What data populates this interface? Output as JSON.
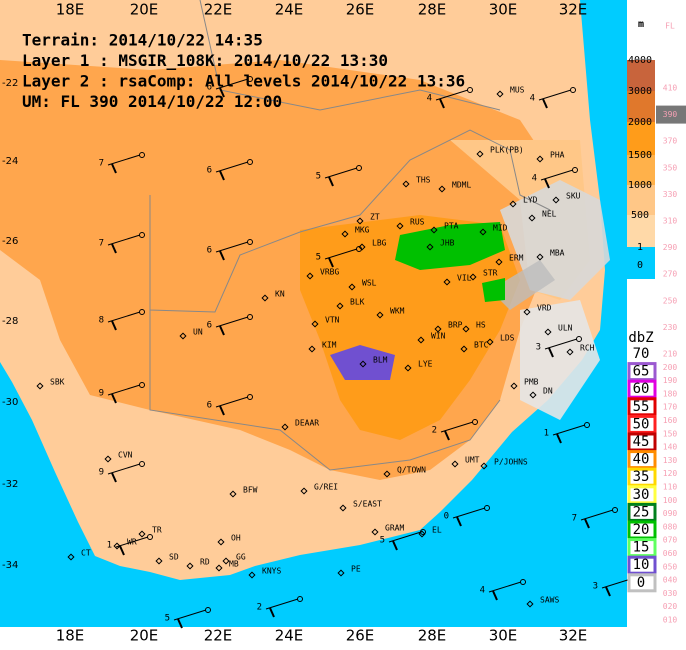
{
  "header": {
    "lines": [
      "Terrain: 2014/10/22 14:35",
      "Layer 1 : MSGIR_108K: 2014/10/22 13:30",
      "Layer 2 : rsaComp: All levels 2014/10/22 13:36",
      "UM: FL 390 2014/10/22 12:00"
    ]
  },
  "longitude_labels": [
    "18E",
    "20E",
    "22E",
    "24E",
    "26E",
    "28E",
    "30E",
    "32E"
  ],
  "latitude_labels": [
    "-22",
    "-24",
    "-26",
    "-28",
    "-30",
    "-32",
    "-34"
  ],
  "terrain_legend": {
    "unit": "m",
    "levels": [
      {
        "label": "4000",
        "color": "#c8643c"
      },
      {
        "label": "3000",
        "color": "#e0782c"
      },
      {
        "label": "2000",
        "color": "#ff9c1a"
      },
      {
        "label": "1500",
        "color": "#ffb14a"
      },
      {
        "label": "1000",
        "color": "#ffc787"
      },
      {
        "label": "500",
        "color": "#ffd9a8"
      },
      {
        "label": "1",
        "color": "#00ccff"
      },
      {
        "label": "0",
        "color": "#ffffff"
      }
    ]
  },
  "flight_level_legend": {
    "title": "FL",
    "selected": "390",
    "levels": [
      "410",
      "390",
      "370",
      "350",
      "330",
      "310",
      "290",
      "270",
      "250",
      "230",
      "210",
      "200",
      "190",
      "180",
      "170",
      "160",
      "150",
      "140",
      "130",
      "120",
      "110",
      "100",
      "090",
      "080",
      "070",
      "060",
      "050",
      "040",
      "030",
      "020",
      "010"
    ]
  },
  "reflectivity_legend": {
    "unit": "dbZ",
    "levels": [
      {
        "label": "70",
        "color": "#ffffff"
      },
      {
        "label": "65",
        "color": "#9b59d0"
      },
      {
        "label": "60",
        "color": "#e000e0"
      },
      {
        "label": "55",
        "color": "#e00000"
      },
      {
        "label": "50",
        "color": "#ff2020"
      },
      {
        "label": "45",
        "color": "#c00000"
      },
      {
        "label": "40",
        "color": "#ff8c00"
      },
      {
        "label": "35",
        "color": "#ffd800"
      },
      {
        "label": "30",
        "color": "#ffff40"
      },
      {
        "label": "25",
        "color": "#00801c"
      },
      {
        "label": "20",
        "color": "#00c000"
      },
      {
        "label": "15",
        "color": "#60ff60"
      },
      {
        "label": "10",
        "color": "#7050d0"
      },
      {
        "label": "0",
        "color": "#c0c0c0"
      }
    ]
  },
  "stations": [
    "MUS",
    "PLK(PB)",
    "PHA",
    "THS",
    "MDML",
    "LYD",
    "SKU",
    "NEL",
    "ZT",
    "MKG",
    "RUS",
    "PTA",
    "MID",
    "LBG",
    "JHB",
    "ERM",
    "MBA",
    "VRBG",
    "WSL",
    "KN",
    "VIL",
    "STR",
    "BLK",
    "WKM",
    "VTN",
    "KIM",
    "WIN",
    "BRP",
    "HS",
    "LDS",
    "BTC",
    "VRD",
    "ULN",
    "RCH",
    "BLM",
    "LYE",
    "PMB",
    "DN",
    "UN",
    "SBK",
    "DEAAR",
    "CVN",
    "Q/TOWN",
    "UMT",
    "P/JOHNS",
    "BFW",
    "G/REI",
    "S/EAST",
    "GRAM",
    "EL",
    "TR",
    "OH",
    "WR",
    "SD",
    "RD",
    "GG",
    "MB",
    "KNYS",
    "PE",
    "CT",
    "SAWS"
  ],
  "wind_labels": [
    "6",
    "4",
    "4",
    "7",
    "6",
    "5",
    "4",
    "7",
    "6",
    "5",
    "8",
    "6",
    "9",
    "6",
    "9",
    "1",
    "2",
    "3",
    "1",
    "0",
    "5",
    "4",
    "7",
    "3",
    "5",
    "2"
  ]
}
